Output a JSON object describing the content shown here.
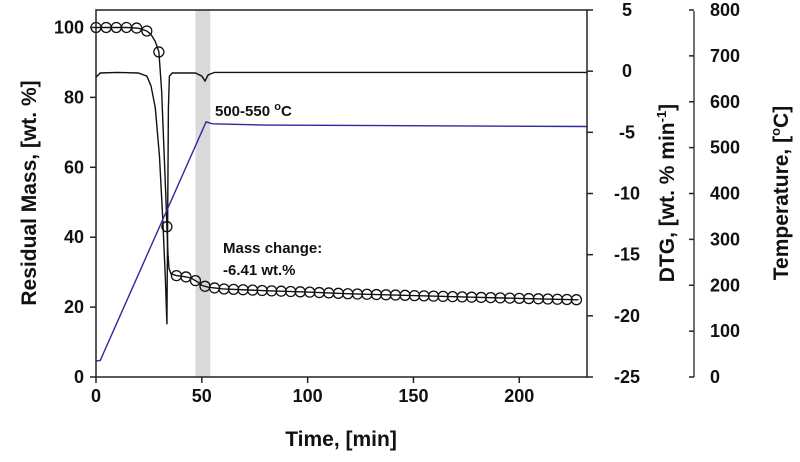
{
  "chart_data": {
    "type": "line",
    "xlabel": "Time, [min]",
    "ylabel_left": "Residual Mass, [wt. %]",
    "ylabel_right1": {
      "main": "DTG, [wt. % min",
      "sup": "-1",
      "close": "]"
    },
    "ylabel_right2": {
      "main": "Temperature, [",
      "sup": "o",
      "close": "C]"
    },
    "xlim": [
      0,
      232
    ],
    "ylim_left": [
      0,
      105
    ],
    "ylim_dtg": [
      -25,
      5
    ],
    "ylim_temp": [
      0,
      800
    ],
    "x_ticks": [
      "0",
      "50",
      "100",
      "150",
      "200"
    ],
    "left_ticks": [
      "0",
      "20",
      "40",
      "60",
      "80",
      "100"
    ],
    "dtg_ticks": [
      "-25",
      "-20",
      "-15",
      "-10",
      "-5",
      "0",
      "5"
    ],
    "temp_ticks": [
      "0",
      "100",
      "200",
      "300",
      "400",
      "500",
      "600",
      "700",
      "800"
    ],
    "grid": false,
    "shaded_band": [
      47,
      54
    ],
    "shade_color": "#d9d9d9",
    "annotations": {
      "temp_range": {
        "main": "500-550 ",
        "sup": "o",
        "close": "C"
      },
      "mass_change_1": "Mass change:",
      "mass_change_2": "-6.41 wt.%"
    },
    "series": [
      {
        "axis": "left",
        "color": "#111111",
        "marker": "open-circle",
        "points": [
          [
            0,
            100
          ],
          [
            5,
            100
          ],
          [
            10,
            100
          ],
          [
            15,
            100
          ],
          [
            20,
            99.8
          ],
          [
            24,
            99
          ],
          [
            26,
            98
          ],
          [
            28,
            96
          ],
          [
            29.7,
            93
          ],
          [
            31,
            82
          ],
          [
            32,
            67
          ],
          [
            33,
            52
          ],
          [
            33.5,
            43
          ],
          [
            34,
            35
          ],
          [
            34.5,
            31
          ],
          [
            35.5,
            29.5
          ],
          [
            38,
            29
          ],
          [
            42,
            28.7
          ],
          [
            45,
            28.3
          ],
          [
            48,
            27.2
          ],
          [
            50,
            26.2
          ],
          [
            53,
            25.7
          ],
          [
            60,
            25.2
          ],
          [
            80,
            24.7
          ],
          [
            100,
            24.3
          ],
          [
            120,
            23.8
          ],
          [
            150,
            23.3
          ],
          [
            180,
            22.8
          ],
          [
            200,
            22.5
          ],
          [
            228,
            22.1
          ]
        ],
        "marker_x": [
          0,
          4.8,
          9.6,
          14.4,
          19.2,
          24,
          29.7,
          33.5,
          38,
          42.5,
          47,
          51.5,
          56,
          60.5,
          65,
          69.5,
          74,
          78.5,
          83,
          87.5,
          92,
          96.5,
          101,
          105.5,
          110,
          114.5,
          119,
          123.5,
          128,
          132.5,
          137,
          141.5,
          146,
          150.5,
          155,
          159.5,
          164,
          168.5,
          173,
          177.5,
          182,
          186.5,
          191,
          195.5,
          200,
          204.5,
          209,
          213.5,
          218,
          222.5,
          227
        ]
      },
      {
        "axis": "dtg",
        "color": "#111111",
        "points": [
          [
            0,
            -0.5
          ],
          [
            2,
            -0.15
          ],
          [
            10,
            -0.1
          ],
          [
            20,
            -0.15
          ],
          [
            24,
            -0.4
          ],
          [
            26,
            -1.2
          ],
          [
            28,
            -3
          ],
          [
            30,
            -7
          ],
          [
            31.5,
            -12
          ],
          [
            32.8,
            -17
          ],
          [
            33.5,
            -20.7
          ],
          [
            33.8,
            -14
          ],
          [
            34.2,
            -3
          ],
          [
            34.7,
            -0.4
          ],
          [
            36,
            -0.15
          ],
          [
            47,
            -0.15
          ],
          [
            50,
            -0.4
          ],
          [
            51.5,
            -0.8
          ],
          [
            53,
            -0.3
          ],
          [
            56,
            -0.1
          ],
          [
            232,
            -0.1
          ]
        ]
      },
      {
        "axis": "temp",
        "color": "#2b2ba0",
        "points": [
          [
            0,
            35
          ],
          [
            2,
            36
          ],
          [
            52,
            556
          ],
          [
            55,
            552
          ],
          [
            80,
            549
          ],
          [
            232,
            546
          ]
        ]
      }
    ]
  }
}
